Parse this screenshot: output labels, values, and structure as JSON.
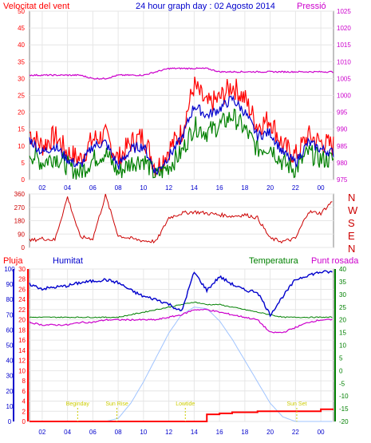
{
  "header": {
    "left_title": "Velocitat del vent",
    "center_title": "24 hour graph day : 02 Agosto 2014",
    "right_title": "Pressió"
  },
  "colors": {
    "red": "#ff0000",
    "blue": "#0000cc",
    "green": "#008000",
    "magenta": "#cc00cc",
    "darkred": "#cc0000",
    "yellow": "#cccc00",
    "lightblue": "#a0c4ff",
    "axis_bg": "#ffffff",
    "page_bg": "#f4f4f4"
  },
  "chart_data": [
    {
      "type": "line",
      "id": "wind",
      "ylim": [
        0,
        50
      ],
      "y2lim": [
        975,
        1025
      ],
      "yticks": [
        "0",
        "5",
        "10",
        "15",
        "20",
        "25",
        "30",
        "35",
        "40",
        "45",
        "50"
      ],
      "y2ticks": [
        "975",
        "980",
        "985",
        "990",
        "995",
        "1000",
        "1005",
        "1010",
        "1015",
        "1020",
        "1025"
      ],
      "xticks": [
        "02",
        "04",
        "06",
        "08",
        "10",
        "12",
        "14",
        "16",
        "18",
        "20",
        "22",
        "00"
      ],
      "x": [
        0,
        1,
        2,
        3,
        4,
        5,
        6,
        7,
        8,
        9,
        10,
        11,
        12,
        13,
        14,
        15,
        16,
        17,
        18,
        19,
        20,
        21,
        22,
        23,
        24
      ],
      "series": [
        {
          "name": "gust",
          "color": "red",
          "values": [
            14,
            10,
            13,
            8,
            6,
            12,
            13,
            6,
            11,
            13,
            3,
            9,
            14,
            28,
            22,
            24,
            28,
            24,
            16,
            18,
            10,
            7,
            13,
            11,
            10
          ]
        },
        {
          "name": "avg",
          "color": "blue",
          "values": [
            12,
            8,
            10,
            6,
            4,
            10,
            11,
            4,
            9,
            10,
            2,
            7,
            12,
            22,
            19,
            21,
            24,
            20,
            13,
            14,
            8,
            5,
            11,
            9,
            8
          ]
        },
        {
          "name": "min",
          "color": "green",
          "values": [
            8,
            5,
            7,
            4,
            2,
            6,
            8,
            2,
            5,
            6,
            1,
            4,
            8,
            16,
            14,
            16,
            19,
            15,
            9,
            10,
            5,
            3,
            8,
            6,
            6
          ]
        },
        {
          "name": "pressure",
          "color": "magenta",
          "axis": "right",
          "values": [
            1006,
            1006,
            1006,
            1006,
            1006,
            1005,
            1005,
            1006,
            1006,
            1006,
            1007,
            1008,
            1008,
            1008,
            1008,
            1007,
            1007,
            1007,
            1007,
            1007,
            1007,
            1007,
            1007,
            1007,
            1007
          ]
        }
      ]
    },
    {
      "type": "line",
      "id": "direction",
      "ylim": [
        0,
        360
      ],
      "yticks": [
        "0",
        "90",
        "180",
        "270",
        "360"
      ],
      "compass": [
        "N",
        "W",
        "S",
        "E",
        "N"
      ],
      "x": [
        0,
        1,
        2,
        3,
        4,
        5,
        6,
        7,
        8,
        9,
        10,
        11,
        12,
        13,
        14,
        15,
        16,
        17,
        18,
        19,
        20,
        21,
        22,
        23,
        24
      ],
      "series": [
        {
          "name": "direction",
          "color": "darkred",
          "values": [
            45,
            60,
            50,
            340,
            70,
            60,
            350,
            80,
            60,
            45,
            40,
            200,
            230,
            240,
            230,
            220,
            210,
            220,
            200,
            60,
            40,
            60,
            240,
            230,
            320
          ]
        }
      ]
    },
    {
      "type": "line",
      "id": "humidity",
      "labels": {
        "rain": "Pluja",
        "humidity": "Humitat",
        "temperature": "Temperatura",
        "dew": "Punt rosada"
      },
      "ylim_left2": [
        0,
        30
      ],
      "ylim_left1": [
        0,
        100
      ],
      "ylim_right": [
        -20,
        40
      ],
      "yticks_left2": [
        "0",
        "2",
        "4",
        "6",
        "8",
        "10",
        "12",
        "14",
        "16",
        "18",
        "20",
        "22",
        "24",
        "26",
        "28",
        "30"
      ],
      "yticks_left1": [
        "0",
        "10",
        "20",
        "30",
        "40",
        "50",
        "60",
        "70",
        "80",
        "90",
        "100"
      ],
      "yticks_right": [
        "-20",
        "-15",
        "-10",
        "-5",
        "0",
        "5",
        "10",
        "15",
        "20",
        "25",
        "30",
        "35",
        "40"
      ],
      "xticks": [
        "02",
        "04",
        "06",
        "08",
        "10",
        "12",
        "14",
        "16",
        "18",
        "20",
        "22",
        "00"
      ],
      "x": [
        0,
        1,
        2,
        3,
        4,
        5,
        6,
        7,
        8,
        9,
        10,
        11,
        12,
        13,
        14,
        15,
        16,
        17,
        18,
        19,
        20,
        21,
        22,
        23,
        24
      ],
      "events": [
        {
          "label": "Beginday",
          "x": 3.8
        },
        {
          "label": "Sun Rise",
          "x": 6.9
        },
        {
          "label": "Lowtide",
          "x": 12.3
        },
        {
          "label": "Sun Set",
          "x": 21.1
        }
      ],
      "series": [
        {
          "name": "humidity",
          "color": "blue",
          "axis": "left1",
          "values": [
            90,
            87,
            88,
            89,
            91,
            92,
            93,
            91,
            86,
            82,
            80,
            77,
            72,
            98,
            86,
            95,
            90,
            86,
            85,
            70,
            82,
            93,
            96,
            98,
            98
          ]
        },
        {
          "name": "temperature",
          "color": "green",
          "axis": "right",
          "values": [
            21,
            21,
            21,
            21,
            21,
            21,
            21,
            21,
            22,
            23,
            24,
            25,
            26,
            27,
            26,
            26,
            25,
            24,
            23,
            22,
            21,
            21,
            21,
            21,
            21
          ]
        },
        {
          "name": "dew",
          "color": "magenta",
          "axis": "right",
          "values": [
            19,
            18,
            18,
            18,
            19,
            19,
            20,
            20,
            20,
            20,
            20,
            21,
            22,
            24,
            24,
            23,
            22,
            21,
            20,
            15,
            15,
            17,
            19,
            20,
            20
          ]
        },
        {
          "name": "solar",
          "color": "lightblue",
          "axis": "left1",
          "values": [
            0,
            0,
            0,
            0,
            0,
            0,
            0,
            2,
            12,
            26,
            42,
            58,
            70,
            75,
            74,
            66,
            54,
            40,
            26,
            12,
            3,
            0,
            0,
            0,
            0
          ]
        },
        {
          "name": "rain",
          "color": "red",
          "axis": "left2",
          "values": [
            0,
            0,
            0,
            0,
            0,
            0,
            0,
            0,
            0,
            0,
            0,
            0,
            0,
            0,
            1.4,
            1.6,
            1.8,
            1.8,
            2,
            2,
            2,
            2,
            2,
            2.4,
            2.4
          ]
        }
      ]
    }
  ]
}
